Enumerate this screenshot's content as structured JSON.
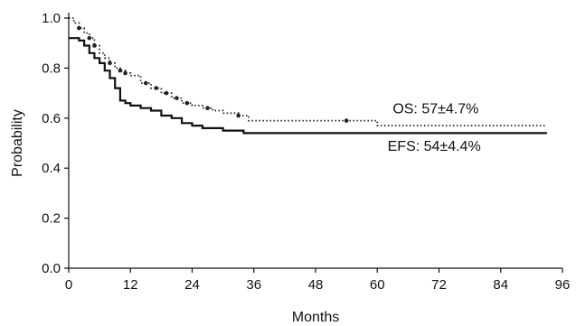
{
  "chart_data": {
    "type": "line",
    "title": "",
    "xlabel": "Months",
    "ylabel": "Probability",
    "xlim": [
      0,
      96
    ],
    "ylim": [
      0.0,
      1.0
    ],
    "x_ticks": [
      0,
      12,
      24,
      36,
      48,
      60,
      72,
      84,
      96
    ],
    "y_ticks": [
      "0.0",
      "0.2",
      "0.4",
      "0.6",
      "0.8",
      "1.0"
    ],
    "grid": false,
    "legend": "none",
    "series": [
      {
        "style": "dotted",
        "color": "#222222",
        "x": [
          0,
          1,
          2,
          3,
          4,
          5,
          6,
          7,
          8,
          9,
          10,
          11,
          12,
          14,
          16,
          18,
          20,
          22,
          24,
          26,
          28,
          30,
          33,
          35,
          40,
          45,
          50,
          55,
          60,
          93
        ],
        "y": [
          1.0,
          0.98,
          0.96,
          0.94,
          0.92,
          0.89,
          0.86,
          0.84,
          0.82,
          0.8,
          0.79,
          0.78,
          0.77,
          0.74,
          0.72,
          0.7,
          0.68,
          0.66,
          0.65,
          0.64,
          0.63,
          0.62,
          0.61,
          0.59,
          0.59,
          0.59,
          0.59,
          0.59,
          0.57,
          0.57
        ],
        "censor_x": [
          2,
          4,
          5,
          8,
          10,
          11,
          15,
          17,
          19,
          21,
          23,
          27,
          33,
          54
        ]
      },
      {
        "style": "solid",
        "color": "#111111",
        "x": [
          0,
          2,
          3,
          4,
          5,
          6,
          7,
          8,
          9,
          10,
          11,
          12,
          14,
          16,
          18,
          20,
          22,
          24,
          26,
          28,
          30,
          34,
          93
        ],
        "y": [
          0.92,
          0.91,
          0.89,
          0.86,
          0.84,
          0.82,
          0.79,
          0.76,
          0.72,
          0.67,
          0.66,
          0.65,
          0.64,
          0.63,
          0.61,
          0.6,
          0.58,
          0.57,
          0.56,
          0.56,
          0.55,
          0.54,
          0.54
        ]
      }
    ],
    "annotations": [
      {
        "text": "OS: 57±4.7%",
        "x": 63,
        "y": 0.62
      },
      {
        "text": "EFS: 54±4.4%",
        "x": 62,
        "y": 0.47
      }
    ]
  }
}
